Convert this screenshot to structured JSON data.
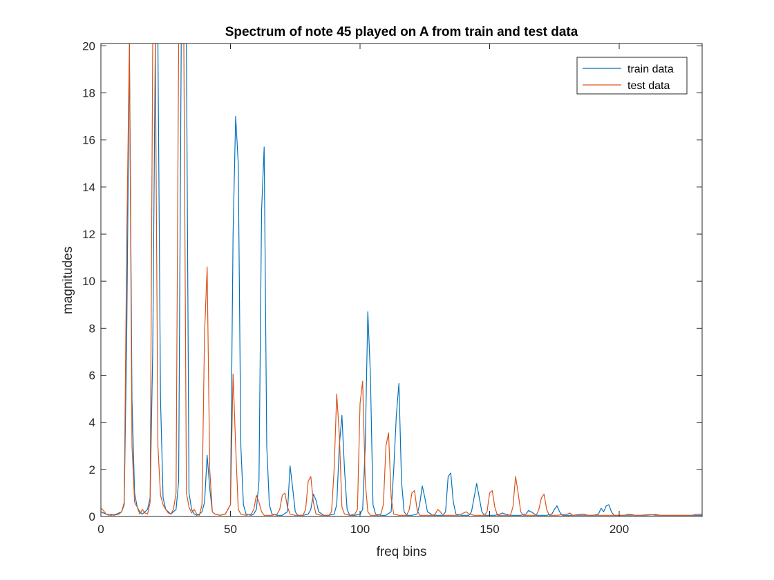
{
  "chart_data": {
    "type": "line",
    "title": "Spectrum of note 45 played on A from train and test data",
    "xlabel": "freq bins",
    "ylabel": "magnitudes",
    "xlim": [
      0,
      232
    ],
    "ylim": [
      0,
      20.1
    ],
    "xticks": [
      0,
      50,
      100,
      150,
      200
    ],
    "yticks": [
      0,
      2,
      4,
      6,
      8,
      10,
      12,
      14,
      16,
      18,
      20
    ],
    "grid": false,
    "legend_position": "top-right",
    "series": [
      {
        "name": "train data",
        "color": "#0072BD",
        "points": [
          [
            0,
            0.2
          ],
          [
            2,
            0.1
          ],
          [
            4,
            0.05
          ],
          [
            6,
            0.1
          ],
          [
            8,
            0.2
          ],
          [
            9,
            0.5
          ],
          [
            10,
            8
          ],
          [
            11,
            20.1
          ],
          [
            12,
            5
          ],
          [
            13,
            1
          ],
          [
            14,
            0.4
          ],
          [
            15,
            0.2
          ],
          [
            16,
            0.1
          ],
          [
            17,
            0.2
          ],
          [
            18,
            0.3
          ],
          [
            19,
            0.8
          ],
          [
            20,
            7
          ],
          [
            21,
            20.1
          ],
          [
            22,
            20.1
          ],
          [
            23,
            5
          ],
          [
            24,
            0.8
          ],
          [
            25,
            0.3
          ],
          [
            26,
            0.2
          ],
          [
            27,
            0.1
          ],
          [
            28,
            0.2
          ],
          [
            29,
            0.3
          ],
          [
            30,
            1.5
          ],
          [
            31,
            20.1
          ],
          [
            32,
            20.1
          ],
          [
            33,
            20.1
          ],
          [
            34,
            1
          ],
          [
            35,
            0.3
          ],
          [
            36,
            0.1
          ],
          [
            37,
            0.05
          ],
          [
            38,
            0.1
          ],
          [
            39,
            0.2
          ],
          [
            40,
            0.6
          ],
          [
            41,
            2.6
          ],
          [
            42,
            1.2
          ],
          [
            43,
            0.2
          ],
          [
            44,
            0.1
          ],
          [
            46,
            0.05
          ],
          [
            48,
            0.1
          ],
          [
            50,
            0.5
          ],
          [
            51,
            12
          ],
          [
            52,
            17
          ],
          [
            53,
            15
          ],
          [
            54,
            3
          ],
          [
            55,
            0.5
          ],
          [
            56,
            0.1
          ],
          [
            58,
            0.05
          ],
          [
            59,
            0.1
          ],
          [
            60,
            0.3
          ],
          [
            61,
            1.5
          ],
          [
            62,
            13
          ],
          [
            63,
            15.7
          ],
          [
            64,
            3
          ],
          [
            65,
            0.5
          ],
          [
            66,
            0.1
          ],
          [
            68,
            0.05
          ],
          [
            70,
            0.05
          ],
          [
            72,
            0.2
          ],
          [
            73,
            2.15
          ],
          [
            74,
            1.2
          ],
          [
            75,
            0.2
          ],
          [
            76,
            0.05
          ],
          [
            78,
            0.05
          ],
          [
            80,
            0.1
          ],
          [
            81,
            0.3
          ],
          [
            82,
            0.95
          ],
          [
            83,
            0.7
          ],
          [
            84,
            0.2
          ],
          [
            86,
            0.05
          ],
          [
            88,
            0.05
          ],
          [
            90,
            0.1
          ],
          [
            91,
            0.5
          ],
          [
            92,
            3
          ],
          [
            93,
            4.3
          ],
          [
            94,
            2
          ],
          [
            95,
            0.3
          ],
          [
            96,
            0.05
          ],
          [
            98,
            0.05
          ],
          [
            100,
            0.1
          ],
          [
            101,
            0.3
          ],
          [
            102,
            3
          ],
          [
            103,
            8.7
          ],
          [
            104,
            6
          ],
          [
            105,
            0.5
          ],
          [
            106,
            0.1
          ],
          [
            108,
            0.05
          ],
          [
            110,
            0.05
          ],
          [
            112,
            0.2
          ],
          [
            113,
            2
          ],
          [
            114,
            4.3
          ],
          [
            115,
            5.65
          ],
          [
            116,
            1.5
          ],
          [
            117,
            0.2
          ],
          [
            118,
            0.05
          ],
          [
            120,
            0.05
          ],
          [
            122,
            0.1
          ],
          [
            123,
            0.5
          ],
          [
            124,
            1.3
          ],
          [
            125,
            0.8
          ],
          [
            126,
            0.2
          ],
          [
            128,
            0.05
          ],
          [
            130,
            0.05
          ],
          [
            132,
            0.05
          ],
          [
            133,
            0.2
          ],
          [
            134,
            1.7
          ],
          [
            135,
            1.85
          ],
          [
            136,
            0.6
          ],
          [
            137,
            0.1
          ],
          [
            139,
            0.05
          ],
          [
            142,
            0.05
          ],
          [
            143,
            0.2
          ],
          [
            144,
            0.8
          ],
          [
            145,
            1.4
          ],
          [
            146,
            0.8
          ],
          [
            147,
            0.2
          ],
          [
            148,
            0.05
          ],
          [
            150,
            0.05
          ],
          [
            152,
            0.05
          ],
          [
            154,
            0.1
          ],
          [
            155,
            0.15
          ],
          [
            156,
            0.1
          ],
          [
            158,
            0.05
          ],
          [
            162,
            0.05
          ],
          [
            164,
            0.1
          ],
          [
            165,
            0.25
          ],
          [
            166,
            0.2
          ],
          [
            168,
            0.05
          ],
          [
            172,
            0.05
          ],
          [
            174,
            0.1
          ],
          [
            175,
            0.3
          ],
          [
            176,
            0.45
          ],
          [
            177,
            0.2
          ],
          [
            178,
            0.05
          ],
          [
            182,
            0.05
          ],
          [
            186,
            0.1
          ],
          [
            188,
            0.05
          ],
          [
            190,
            0.05
          ],
          [
            192,
            0.1
          ],
          [
            193,
            0.35
          ],
          [
            194,
            0.2
          ],
          [
            195,
            0.45
          ],
          [
            196,
            0.5
          ],
          [
            197,
            0.2
          ],
          [
            198,
            0.05
          ],
          [
            202,
            0.05
          ],
          [
            204,
            0.1
          ],
          [
            206,
            0.05
          ],
          [
            210,
            0.05
          ],
          [
            214,
            0.08
          ],
          [
            216,
            0.05
          ],
          [
            220,
            0.05
          ],
          [
            226,
            0.05
          ],
          [
            230,
            0.05
          ],
          [
            232,
            0.05
          ]
        ]
      },
      {
        "name": "test data",
        "color": "#D95319",
        "points": [
          [
            0,
            0.35
          ],
          [
            1,
            0.25
          ],
          [
            2,
            0.1
          ],
          [
            3,
            0.05
          ],
          [
            4,
            0.1
          ],
          [
            5,
            0.05
          ],
          [
            7,
            0.1
          ],
          [
            8,
            0.2
          ],
          [
            9,
            0.6
          ],
          [
            10,
            12
          ],
          [
            11,
            20.1
          ],
          [
            12,
            3
          ],
          [
            13,
            0.6
          ],
          [
            14,
            0.4
          ],
          [
            15,
            0.1
          ],
          [
            16,
            0.3
          ],
          [
            17,
            0.15
          ],
          [
            18,
            0.1
          ],
          [
            19,
            0.6
          ],
          [
            20,
            20.1
          ],
          [
            21,
            20.1
          ],
          [
            22,
            3
          ],
          [
            23,
            0.9
          ],
          [
            24,
            0.5
          ],
          [
            25,
            0.3
          ],
          [
            26,
            0.15
          ],
          [
            27,
            0.1
          ],
          [
            28,
            0.3
          ],
          [
            29,
            1
          ],
          [
            30,
            20.1
          ],
          [
            31,
            20.1
          ],
          [
            32,
            20.1
          ],
          [
            33,
            1
          ],
          [
            34,
            0.4
          ],
          [
            35,
            0.15
          ],
          [
            36,
            0.3
          ],
          [
            37,
            0.1
          ],
          [
            38,
            0.05
          ],
          [
            39,
            0.5
          ],
          [
            40,
            7.8
          ],
          [
            41,
            10.6
          ],
          [
            42,
            2
          ],
          [
            43,
            0.2
          ],
          [
            44,
            0.1
          ],
          [
            46,
            0.05
          ],
          [
            48,
            0.1
          ],
          [
            50,
            0.5
          ],
          [
            51,
            6.05
          ],
          [
            52,
            3
          ],
          [
            53,
            0.3
          ],
          [
            54,
            0.1
          ],
          [
            56,
            0.05
          ],
          [
            58,
            0.1
          ],
          [
            59,
            0.3
          ],
          [
            60,
            0.9
          ],
          [
            61,
            0.6
          ],
          [
            62,
            0.2
          ],
          [
            63,
            0.05
          ],
          [
            66,
            0.05
          ],
          [
            68,
            0.1
          ],
          [
            69,
            0.3
          ],
          [
            70,
            0.9
          ],
          [
            71,
            1
          ],
          [
            72,
            0.4
          ],
          [
            73,
            0.1
          ],
          [
            75,
            0.05
          ],
          [
            78,
            0.05
          ],
          [
            79,
            0.3
          ],
          [
            80,
            1.5
          ],
          [
            81,
            1.7
          ],
          [
            82,
            0.6
          ],
          [
            83,
            0.1
          ],
          [
            85,
            0.05
          ],
          [
            88,
            0.05
          ],
          [
            89,
            0.2
          ],
          [
            90,
            2
          ],
          [
            91,
            5.2
          ],
          [
            92,
            3.5
          ],
          [
            93,
            0.4
          ],
          [
            94,
            0.1
          ],
          [
            96,
            0.05
          ],
          [
            98,
            0.1
          ],
          [
            99,
            0.3
          ],
          [
            100,
            4.8
          ],
          [
            101,
            5.75
          ],
          [
            102,
            1.5
          ],
          [
            103,
            0.2
          ],
          [
            104,
            0.05
          ],
          [
            107,
            0.05
          ],
          [
            108,
            0.1
          ],
          [
            109,
            0.5
          ],
          [
            110,
            3
          ],
          [
            111,
            3.55
          ],
          [
            112,
            0.8
          ],
          [
            113,
            0.1
          ],
          [
            115,
            0.05
          ],
          [
            118,
            0.05
          ],
          [
            119,
            0.3
          ],
          [
            120,
            1
          ],
          [
            121,
            1.1
          ],
          [
            122,
            0.3
          ],
          [
            123,
            0.05
          ],
          [
            126,
            0.05
          ],
          [
            128,
            0.05
          ],
          [
            129,
            0.1
          ],
          [
            130,
            0.3
          ],
          [
            131,
            0.2
          ],
          [
            132,
            0.05
          ],
          [
            136,
            0.05
          ],
          [
            138,
            0.05
          ],
          [
            140,
            0.15
          ],
          [
            141,
            0.2
          ],
          [
            142,
            0.1
          ],
          [
            144,
            0.05
          ],
          [
            146,
            0.05
          ],
          [
            148,
            0.05
          ],
          [
            149,
            0.2
          ],
          [
            150,
            1
          ],
          [
            151,
            1.1
          ],
          [
            152,
            0.4
          ],
          [
            153,
            0.05
          ],
          [
            156,
            0.05
          ],
          [
            158,
            0.05
          ],
          [
            159,
            0.4
          ],
          [
            160,
            1.7
          ],
          [
            161,
            1
          ],
          [
            162,
            0.2
          ],
          [
            163,
            0.05
          ],
          [
            166,
            0.05
          ],
          [
            168,
            0.05
          ],
          [
            169,
            0.3
          ],
          [
            170,
            0.8
          ],
          [
            171,
            0.95
          ],
          [
            172,
            0.3
          ],
          [
            173,
            0.05
          ],
          [
            176,
            0.05
          ],
          [
            180,
            0.1
          ],
          [
            181,
            0.15
          ],
          [
            182,
            0.05
          ],
          [
            186,
            0.05
          ],
          [
            190,
            0.05
          ],
          [
            194,
            0.05
          ],
          [
            200,
            0.05
          ],
          [
            204,
            0.05
          ],
          [
            208,
            0.05
          ],
          [
            212,
            0.08
          ],
          [
            214,
            0.05
          ],
          [
            218,
            0.05
          ],
          [
            222,
            0.05
          ],
          [
            226,
            0.05
          ],
          [
            228,
            0.05
          ],
          [
            230,
            0.1
          ],
          [
            232,
            0.1
          ]
        ]
      }
    ]
  }
}
